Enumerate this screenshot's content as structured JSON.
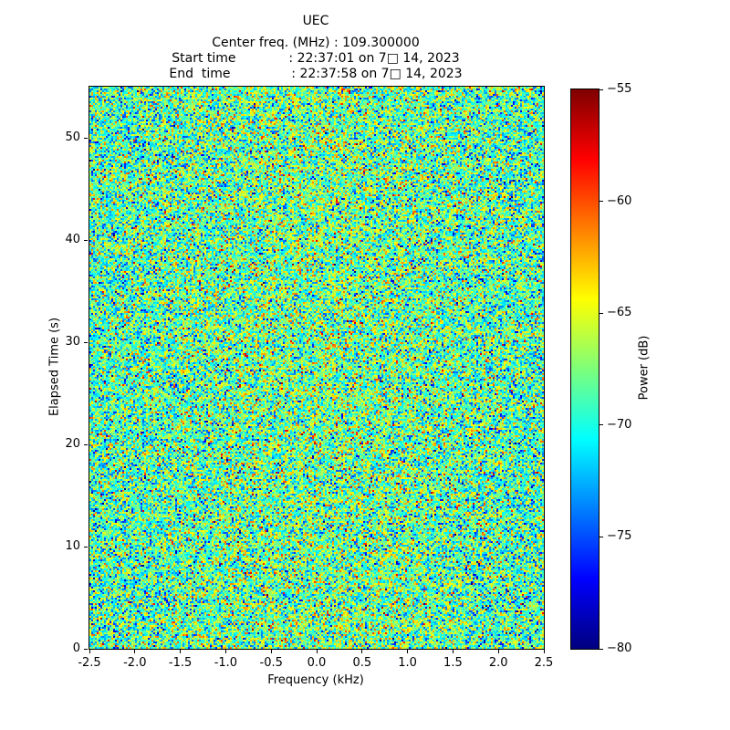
{
  "title": "UEC",
  "subtitle_lines": [
    "Center freq. (MHz) : 109.300000",
    "Start time             : 22:37:01 on 7□ 14, 2023",
    "End  time               : 22:37:58 on 7□ 14, 2023"
  ],
  "chart_data": {
    "type": "heatmap",
    "subtype": "spectrogram-waterfall",
    "title": "UEC",
    "header_lines": [
      "Center freq. (MHz) : 109.300000",
      "Start time : 22:37:01 on 7□ 14, 2023",
      "End  time : 22:37:58 on 7□ 14, 2023"
    ],
    "xlabel": "Frequency (kHz)",
    "ylabel": "Elapsed Time (s)",
    "colorbar_label": "Power (dB)",
    "x_range": [
      -2.5,
      2.5
    ],
    "y_range": [
      0,
      55
    ],
    "color_range": [
      -80,
      -55
    ],
    "x_ticks": [
      -2.5,
      -2.0,
      -1.5,
      -1.0,
      -0.5,
      0.0,
      0.5,
      1.0,
      1.5,
      2.0,
      2.5
    ],
    "x_tick_labels": [
      "-2.5",
      "-2.0",
      "-1.5",
      "-1.0",
      "-0.5",
      "0.0",
      "0.5",
      "1.0",
      "1.5",
      "2.0",
      "2.5"
    ],
    "y_ticks": [
      0,
      10,
      20,
      30,
      40,
      50
    ],
    "y_tick_labels": [
      "0",
      "10",
      "20",
      "30",
      "40",
      "50"
    ],
    "colorbar_ticks": [
      -55,
      -60,
      -65,
      -70,
      -75,
      -80
    ],
    "colorbar_tick_labels": [
      "−55",
      "−60",
      "−65",
      "−70",
      "−75",
      "−80"
    ],
    "colormap": "jet",
    "colormap_stops": [
      {
        "pos": 0.0,
        "color": "#00007f"
      },
      {
        "pos": 0.125,
        "color": "#0000ff"
      },
      {
        "pos": 0.375,
        "color": "#00ffff"
      },
      {
        "pos": 0.5,
        "color": "#7dff7a"
      },
      {
        "pos": 0.625,
        "color": "#ffff00"
      },
      {
        "pos": 0.875,
        "color": "#ff0000"
      },
      {
        "pos": 1.0,
        "color": "#7f0000"
      }
    ],
    "grid": false,
    "data_description": "Broadband noise spectrogram: uncorrelated speckle across all frequencies (-2.5 to 2.5 kHz) and elapsed time (0 to ~55 s); power values concentrated near -69 dB (cyan/green) with sparse darker (-77 dB, blue) and brighter (-62 dB, yellow) pixels; slight brightening toward center frequency.",
    "noise_mean_db": -69.0,
    "noise_std_db": 3.8,
    "noise_center_bump_db": 1.2,
    "grid_cols": 249,
    "grid_rows": 308,
    "seed": 1337
  }
}
